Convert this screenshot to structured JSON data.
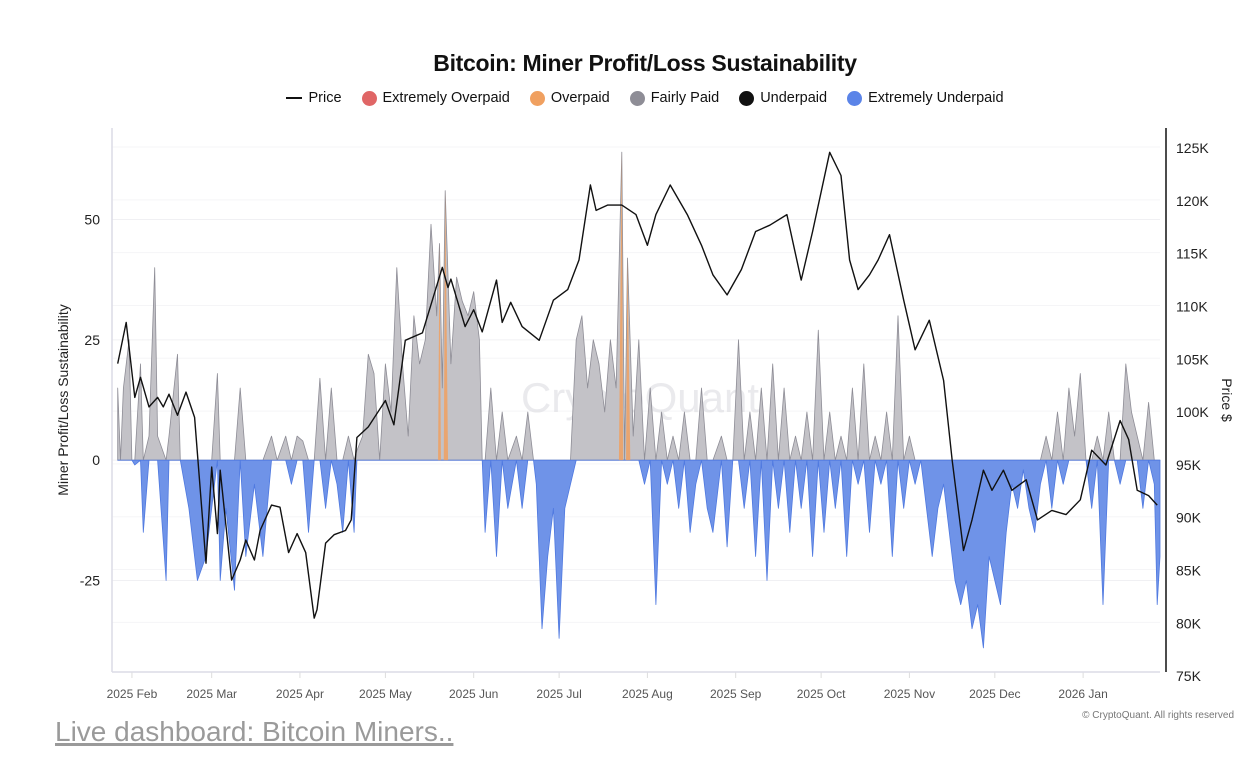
{
  "chart_data": {
    "type": "area+line",
    "title": "Bitcoin: Miner Profit/Loss Sustainability",
    "legend": [
      {
        "name": "Price",
        "color": "#111111",
        "marker": "line"
      },
      {
        "name": "Extremely Overpaid",
        "color": "#e06666",
        "marker": "dot"
      },
      {
        "name": "Overpaid",
        "color": "#f0a060",
        "marker": "dot"
      },
      {
        "name": "Fairly Paid",
        "color": "#8e8d96",
        "marker": "dot"
      },
      {
        "name": "Underpaid",
        "color": "#111111",
        "marker": "dot"
      },
      {
        "name": "Extremely Underpaid",
        "color": "#5b84e8",
        "marker": "dot"
      }
    ],
    "legend_placement": "top-center",
    "ylabel_left": "Miner Profit/Loss Sustainability",
    "ylabel_right": "Price $",
    "x_range": [
      "2025-01-25",
      "2026-01-28"
    ],
    "x_ticks": [
      "2025 Feb",
      "2025 Mar",
      "2025 Apr",
      "2025 May",
      "2025 Jun",
      "2025 Jul",
      "2025 Aug",
      "2025 Sep",
      "2025 Oct",
      "2025 Nov",
      "2025 Dec",
      "2026 Jan"
    ],
    "x_tick_dates": [
      "2025-02-01",
      "2025-03-01",
      "2025-04-01",
      "2025-05-01",
      "2025-06-01",
      "2025-07-01",
      "2025-08-01",
      "2025-09-01",
      "2025-10-01",
      "2025-11-01",
      "2025-12-01",
      "2026-01-01"
    ],
    "y_left_range": [
      -44,
      69
    ],
    "y_left_ticks": [
      -25,
      0,
      25,
      50
    ],
    "y_left_tick_labels": [
      "-25",
      "0",
      "25",
      "50"
    ],
    "y_right_range": [
      75.3,
      126.8
    ],
    "y_right_ticks": [
      75,
      80,
      85,
      90,
      95,
      100,
      105,
      110,
      115,
      120,
      125
    ],
    "y_right_tick_labels": [
      "75K",
      "80K",
      "85K",
      "90K",
      "95K",
      "100K",
      "105K",
      "110K",
      "115K",
      "120K",
      "125K"
    ],
    "grid": true,
    "colors": {
      "fairly_paid_fill": "#c3c2c7",
      "fairly_paid_line": "#8e8d96",
      "extremely_underpaid_fill": "#6f93e8",
      "extremely_underpaid_line": "#4f79e0",
      "overpaid": "#f0a060",
      "price": "#111111"
    },
    "overpaid_dates": [
      "2025-05-20",
      "2025-05-22",
      "2025-07-23",
      "2025-07-25"
    ],
    "sustainability": [
      [
        "2025-01-27",
        15
      ],
      [
        "2025-01-28",
        0
      ],
      [
        "2025-01-29",
        15
      ],
      [
        "2025-01-31",
        25
      ],
      [
        "2025-02-01",
        0
      ],
      [
        "2025-02-02",
        -1
      ],
      [
        "2025-02-04",
        20
      ],
      [
        "2025-02-05",
        -15
      ],
      [
        "2025-02-07",
        5
      ],
      [
        "2025-02-09",
        40
      ],
      [
        "2025-02-10",
        5
      ],
      [
        "2025-02-13",
        -25
      ],
      [
        "2025-02-14",
        5
      ],
      [
        "2025-02-17",
        22
      ],
      [
        "2025-02-18",
        0
      ],
      [
        "2025-02-21",
        -10
      ],
      [
        "2025-02-24",
        -25
      ],
      [
        "2025-02-27",
        -20
      ],
      [
        "2025-03-01",
        -10
      ],
      [
        "2025-03-03",
        18
      ],
      [
        "2025-03-04",
        -25
      ],
      [
        "2025-03-06",
        -10
      ],
      [
        "2025-03-09",
        -27
      ],
      [
        "2025-03-11",
        15
      ],
      [
        "2025-03-13",
        -20
      ],
      [
        "2025-03-16",
        -5
      ],
      [
        "2025-03-19",
        -20
      ],
      [
        "2025-03-22",
        5
      ],
      [
        "2025-03-24",
        0
      ],
      [
        "2025-03-27",
        5
      ],
      [
        "2025-03-29",
        -5
      ],
      [
        "2025-03-31",
        5
      ],
      [
        "2025-04-02",
        4
      ],
      [
        "2025-04-04",
        -15
      ],
      [
        "2025-04-06",
        0
      ],
      [
        "2025-04-08",
        17
      ],
      [
        "2025-04-10",
        -10
      ],
      [
        "2025-04-12",
        15
      ],
      [
        "2025-04-14",
        -5
      ],
      [
        "2025-04-16",
        -15
      ],
      [
        "2025-04-18",
        5
      ],
      [
        "2025-04-20",
        -15
      ],
      [
        "2025-04-21",
        2
      ],
      [
        "2025-04-23",
        5
      ],
      [
        "2025-04-25",
        22
      ],
      [
        "2025-04-27",
        18
      ],
      [
        "2025-04-29",
        0
      ],
      [
        "2025-05-01",
        20
      ],
      [
        "2025-05-03",
        10
      ],
      [
        "2025-05-05",
        40
      ],
      [
        "2025-05-07",
        20
      ],
      [
        "2025-05-09",
        5
      ],
      [
        "2025-05-11",
        30
      ],
      [
        "2025-05-13",
        20
      ],
      [
        "2025-05-15",
        25
      ],
      [
        "2025-05-17",
        49
      ],
      [
        "2025-05-19",
        30
      ],
      [
        "2025-05-20",
        45
      ],
      [
        "2025-05-21",
        15
      ],
      [
        "2025-05-22",
        56
      ],
      [
        "2025-05-24",
        20
      ],
      [
        "2025-05-26",
        38
      ],
      [
        "2025-05-28",
        33
      ],
      [
        "2025-05-30",
        30
      ],
      [
        "2025-06-01",
        35
      ],
      [
        "2025-06-03",
        25
      ],
      [
        "2025-06-04",
        0
      ],
      [
        "2025-06-05",
        -15
      ],
      [
        "2025-06-07",
        15
      ],
      [
        "2025-06-09",
        -20
      ],
      [
        "2025-06-11",
        10
      ],
      [
        "2025-06-13",
        -10
      ],
      [
        "2025-06-16",
        5
      ],
      [
        "2025-06-18",
        -10
      ],
      [
        "2025-06-20",
        10
      ],
      [
        "2025-06-22",
        0
      ],
      [
        "2025-06-23",
        -5
      ],
      [
        "2025-06-25",
        -35
      ],
      [
        "2025-06-27",
        -20
      ],
      [
        "2025-06-29",
        -10
      ],
      [
        "2025-07-01",
        -37
      ],
      [
        "2025-07-03",
        -10
      ],
      [
        "2025-07-05",
        -5
      ],
      [
        "2025-07-07",
        25
      ],
      [
        "2025-07-09",
        30
      ],
      [
        "2025-07-11",
        15
      ],
      [
        "2025-07-13",
        25
      ],
      [
        "2025-07-15",
        20
      ],
      [
        "2025-07-17",
        10
      ],
      [
        "2025-07-19",
        25
      ],
      [
        "2025-07-21",
        15
      ],
      [
        "2025-07-23",
        64
      ],
      [
        "2025-07-24",
        0
      ],
      [
        "2025-07-25",
        42
      ],
      [
        "2025-07-27",
        5
      ],
      [
        "2025-07-29",
        25
      ],
      [
        "2025-07-31",
        -5
      ],
      [
        "2025-08-02",
        15
      ],
      [
        "2025-08-04",
        -30
      ],
      [
        "2025-08-06",
        10
      ],
      [
        "2025-08-08",
        -5
      ],
      [
        "2025-08-10",
        5
      ],
      [
        "2025-08-12",
        -10
      ],
      [
        "2025-08-14",
        10
      ],
      [
        "2025-08-16",
        -15
      ],
      [
        "2025-08-18",
        -5
      ],
      [
        "2025-08-20",
        15
      ],
      [
        "2025-08-22",
        -10
      ],
      [
        "2025-08-24",
        -15
      ],
      [
        "2025-08-27",
        5
      ],
      [
        "2025-08-29",
        -18
      ],
      [
        "2025-08-31",
        0
      ],
      [
        "2025-09-02",
        25
      ],
      [
        "2025-09-04",
        -10
      ],
      [
        "2025-09-06",
        10
      ],
      [
        "2025-09-08",
        -20
      ],
      [
        "2025-09-10",
        15
      ],
      [
        "2025-09-12",
        -25
      ],
      [
        "2025-09-14",
        20
      ],
      [
        "2025-09-16",
        -10
      ],
      [
        "2025-09-18",
        15
      ],
      [
        "2025-09-20",
        -15
      ],
      [
        "2025-09-22",
        5
      ],
      [
        "2025-09-24",
        -10
      ],
      [
        "2025-09-26",
        10
      ],
      [
        "2025-09-28",
        -20
      ],
      [
        "2025-09-30",
        27
      ],
      [
        "2025-10-02",
        -15
      ],
      [
        "2025-10-04",
        10
      ],
      [
        "2025-10-06",
        -10
      ],
      [
        "2025-10-08",
        5
      ],
      [
        "2025-10-10",
        -20
      ],
      [
        "2025-10-12",
        15
      ],
      [
        "2025-10-14",
        -5
      ],
      [
        "2025-10-16",
        20
      ],
      [
        "2025-10-18",
        -15
      ],
      [
        "2025-10-20",
        5
      ],
      [
        "2025-10-22",
        -5
      ],
      [
        "2025-10-24",
        10
      ],
      [
        "2025-10-26",
        -20
      ],
      [
        "2025-10-28",
        30
      ],
      [
        "2025-10-30",
        -10
      ],
      [
        "2025-11-01",
        5
      ],
      [
        "2025-11-03",
        -5
      ],
      [
        "2025-11-05",
        0
      ],
      [
        "2025-11-07",
        -10
      ],
      [
        "2025-11-09",
        -20
      ],
      [
        "2025-11-11",
        -10
      ],
      [
        "2025-11-13",
        -5
      ],
      [
        "2025-11-15",
        -15
      ],
      [
        "2025-11-17",
        -25
      ],
      [
        "2025-11-19",
        -30
      ],
      [
        "2025-11-21",
        -25
      ],
      [
        "2025-11-23",
        -35
      ],
      [
        "2025-11-25",
        -30
      ],
      [
        "2025-11-27",
        -39
      ],
      [
        "2025-11-29",
        -20
      ],
      [
        "2025-12-01",
        -25
      ],
      [
        "2025-12-03",
        -30
      ],
      [
        "2025-12-05",
        -15
      ],
      [
        "2025-12-07",
        -5
      ],
      [
        "2025-12-09",
        -10
      ],
      [
        "2025-12-11",
        -2
      ],
      [
        "2025-12-13",
        -10
      ],
      [
        "2025-12-15",
        -15
      ],
      [
        "2025-12-17",
        -5
      ],
      [
        "2025-12-19",
        5
      ],
      [
        "2025-12-21",
        -10
      ],
      [
        "2025-12-23",
        10
      ],
      [
        "2025-12-25",
        -5
      ],
      [
        "2025-12-27",
        15
      ],
      [
        "2025-12-29",
        5
      ],
      [
        "2025-12-31",
        18
      ],
      [
        "2026-01-02",
        0
      ],
      [
        "2026-01-04",
        -10
      ],
      [
        "2026-01-06",
        5
      ],
      [
        "2026-01-08",
        -30
      ],
      [
        "2026-01-10",
        10
      ],
      [
        "2026-01-12",
        0
      ],
      [
        "2026-01-14",
        -5
      ],
      [
        "2026-01-16",
        20
      ],
      [
        "2026-01-18",
        10
      ],
      [
        "2026-01-20",
        5
      ],
      [
        "2026-01-22",
        -10
      ],
      [
        "2026-01-24",
        12
      ],
      [
        "2026-01-26",
        -5
      ],
      [
        "2026-01-27",
        -30
      ],
      [
        "2026-01-28",
        -20
      ]
    ],
    "price_k": [
      [
        "2025-01-27",
        104.5
      ],
      [
        "2025-01-30",
        108.4
      ],
      [
        "2025-02-02",
        101.3
      ],
      [
        "2025-02-04",
        103.2
      ],
      [
        "2025-02-07",
        100.4
      ],
      [
        "2025-02-10",
        101.3
      ],
      [
        "2025-02-12",
        100.4
      ],
      [
        "2025-02-14",
        101.6
      ],
      [
        "2025-02-17",
        99.6
      ],
      [
        "2025-02-20",
        101.8
      ],
      [
        "2025-02-23",
        99.4
      ],
      [
        "2025-02-27",
        85.6
      ],
      [
        "2025-03-01",
        94.7
      ],
      [
        "2025-03-03",
        88.4
      ],
      [
        "2025-03-04",
        94.4
      ],
      [
        "2025-03-08",
        84.0
      ],
      [
        "2025-03-11",
        85.9
      ],
      [
        "2025-03-13",
        87.8
      ],
      [
        "2025-03-16",
        85.9
      ],
      [
        "2025-03-18",
        88.7
      ],
      [
        "2025-03-22",
        91.1
      ],
      [
        "2025-03-25",
        90.9
      ],
      [
        "2025-03-28",
        86.6
      ],
      [
        "2025-03-31",
        88.4
      ],
      [
        "2025-04-03",
        86.6
      ],
      [
        "2025-04-06",
        80.4
      ],
      [
        "2025-04-07",
        81.2
      ],
      [
        "2025-04-10",
        87.5
      ],
      [
        "2025-04-13",
        88.3
      ],
      [
        "2025-04-17",
        88.7
      ],
      [
        "2025-04-19",
        89.7
      ],
      [
        "2025-04-21",
        97.5
      ],
      [
        "2025-04-25",
        98.5
      ],
      [
        "2025-05-01",
        101.0
      ],
      [
        "2025-05-04",
        98.7
      ],
      [
        "2025-05-08",
        106.7
      ],
      [
        "2025-05-14",
        107.4
      ],
      [
        "2025-05-21",
        113.6
      ],
      [
        "2025-05-23",
        111.7
      ],
      [
        "2025-05-24",
        112.5
      ],
      [
        "2025-05-29",
        108.0
      ],
      [
        "2025-06-01",
        109.6
      ],
      [
        "2025-06-04",
        107.5
      ],
      [
        "2025-06-09",
        112.4
      ],
      [
        "2025-06-11",
        108.4
      ],
      [
        "2025-06-14",
        110.3
      ],
      [
        "2025-06-18",
        108.0
      ],
      [
        "2025-06-24",
        106.7
      ],
      [
        "2025-06-29",
        110.5
      ],
      [
        "2025-07-04",
        111.5
      ],
      [
        "2025-07-08",
        114.3
      ],
      [
        "2025-07-12",
        121.4
      ],
      [
        "2025-07-14",
        119.0
      ],
      [
        "2025-07-18",
        119.5
      ],
      [
        "2025-07-23",
        119.5
      ],
      [
        "2025-07-28",
        118.6
      ],
      [
        "2025-08-01",
        115.7
      ],
      [
        "2025-08-04",
        118.6
      ],
      [
        "2025-08-09",
        121.4
      ],
      [
        "2025-08-15",
        118.6
      ],
      [
        "2025-08-20",
        115.7
      ],
      [
        "2025-08-24",
        112.9
      ],
      [
        "2025-08-29",
        111.0
      ],
      [
        "2025-09-03",
        113.4
      ],
      [
        "2025-09-08",
        117.0
      ],
      [
        "2025-09-13",
        117.6
      ],
      [
        "2025-09-19",
        118.6
      ],
      [
        "2025-09-24",
        112.4
      ],
      [
        "2025-09-28",
        117.0
      ],
      [
        "2025-10-04",
        124.5
      ],
      [
        "2025-10-08",
        122.3
      ],
      [
        "2025-10-11",
        114.3
      ],
      [
        "2025-10-14",
        111.5
      ],
      [
        "2025-10-18",
        112.9
      ],
      [
        "2025-10-21",
        114.3
      ],
      [
        "2025-10-25",
        116.7
      ],
      [
        "2025-10-30",
        110.5
      ],
      [
        "2025-11-03",
        105.8
      ],
      [
        "2025-11-08",
        108.6
      ],
      [
        "2025-11-13",
        102.9
      ],
      [
        "2025-11-16",
        95.4
      ],
      [
        "2025-11-20",
        86.8
      ],
      [
        "2025-11-23",
        89.7
      ],
      [
        "2025-11-27",
        94.4
      ],
      [
        "2025-11-30",
        92.5
      ],
      [
        "2025-12-04",
        94.4
      ],
      [
        "2025-12-07",
        92.5
      ],
      [
        "2025-12-12",
        93.5
      ],
      [
        "2025-12-16",
        89.7
      ],
      [
        "2025-12-21",
        90.6
      ],
      [
        "2025-12-26",
        90.2
      ],
      [
        "2025-12-31",
        91.6
      ],
      [
        "2026-01-04",
        96.3
      ],
      [
        "2026-01-09",
        94.9
      ],
      [
        "2026-01-14",
        99.1
      ],
      [
        "2026-01-17",
        97.3
      ],
      [
        "2026-01-20",
        92.5
      ],
      [
        "2026-01-24",
        92.0
      ],
      [
        "2026-01-27",
        91.1
      ]
    ],
    "watermark": "CryptoQuant",
    "copyright": "© CryptoQuant. All rights reserved"
  },
  "footer": {
    "link_text": "Live dashboard: Bitcoin Miners.."
  }
}
